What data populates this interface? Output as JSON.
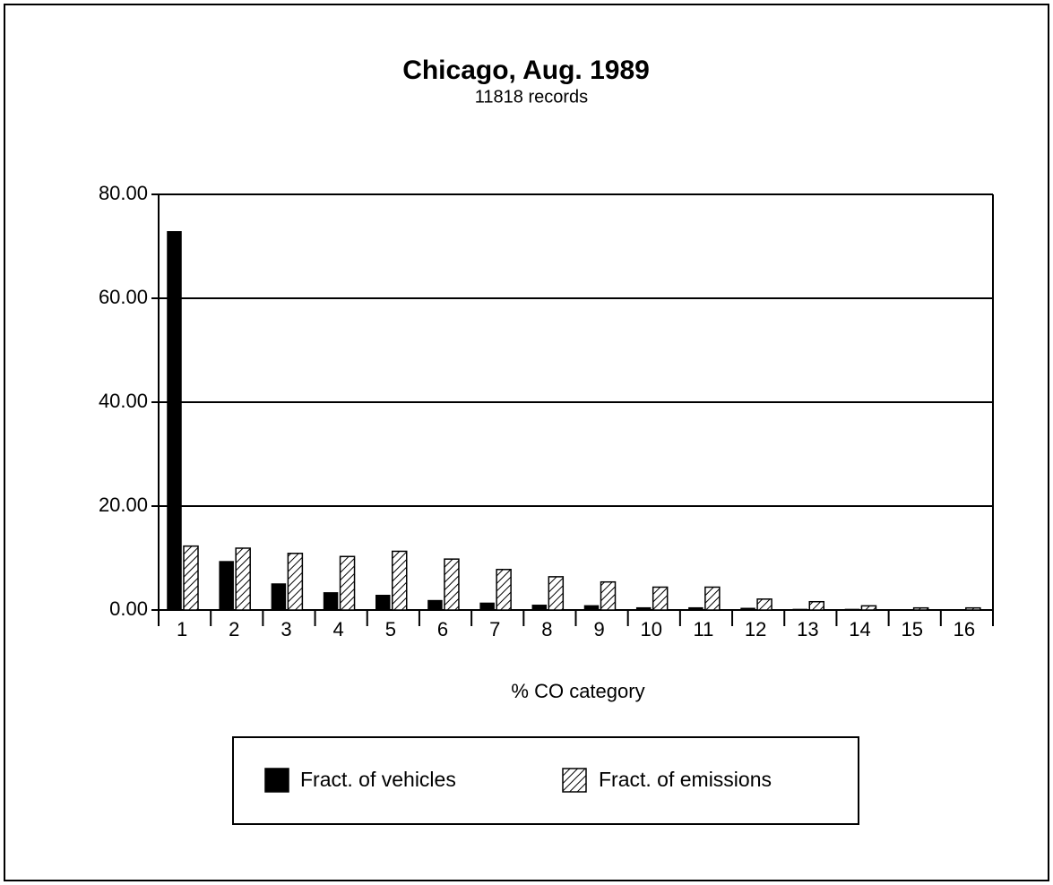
{
  "chart_data": {
    "type": "bar",
    "title": "Chicago, Aug. 1989",
    "subtitle": "11818 records",
    "x_label": "% CO category",
    "categories": [
      "1",
      "2",
      "3",
      "4",
      "5",
      "6",
      "7",
      "8",
      "9",
      "10",
      "11",
      "12",
      "13",
      "14",
      "15",
      "16"
    ],
    "series": [
      {
        "name": "Fract. of vehicles",
        "color": "#000000",
        "pattern": "solid",
        "values": [
          72.8,
          9.3,
          5.0,
          3.3,
          2.8,
          1.8,
          1.3,
          0.9,
          0.8,
          0.4,
          0.4,
          0.3,
          0.1,
          0.1,
          0,
          0
        ]
      },
      {
        "name": "Fract. of emissions",
        "color": "#000000",
        "pattern": "hatch",
        "values": [
          12.3,
          11.9,
          10.9,
          10.3,
          11.3,
          9.8,
          7.8,
          6.4,
          5.4,
          4.4,
          4.4,
          2.1,
          1.6,
          0.8,
          0.4,
          0.4
        ]
      }
    ],
    "ylim": [
      0,
      80
    ],
    "yticks": [
      {
        "value": 0,
        "label": "0.00"
      },
      {
        "value": 20,
        "label": "20.00"
      },
      {
        "value": 40,
        "label": "40.00"
      },
      {
        "value": 60,
        "label": "60.00"
      },
      {
        "value": 80,
        "label": "80.00"
      }
    ],
    "grid": true,
    "legend": "bottom"
  }
}
